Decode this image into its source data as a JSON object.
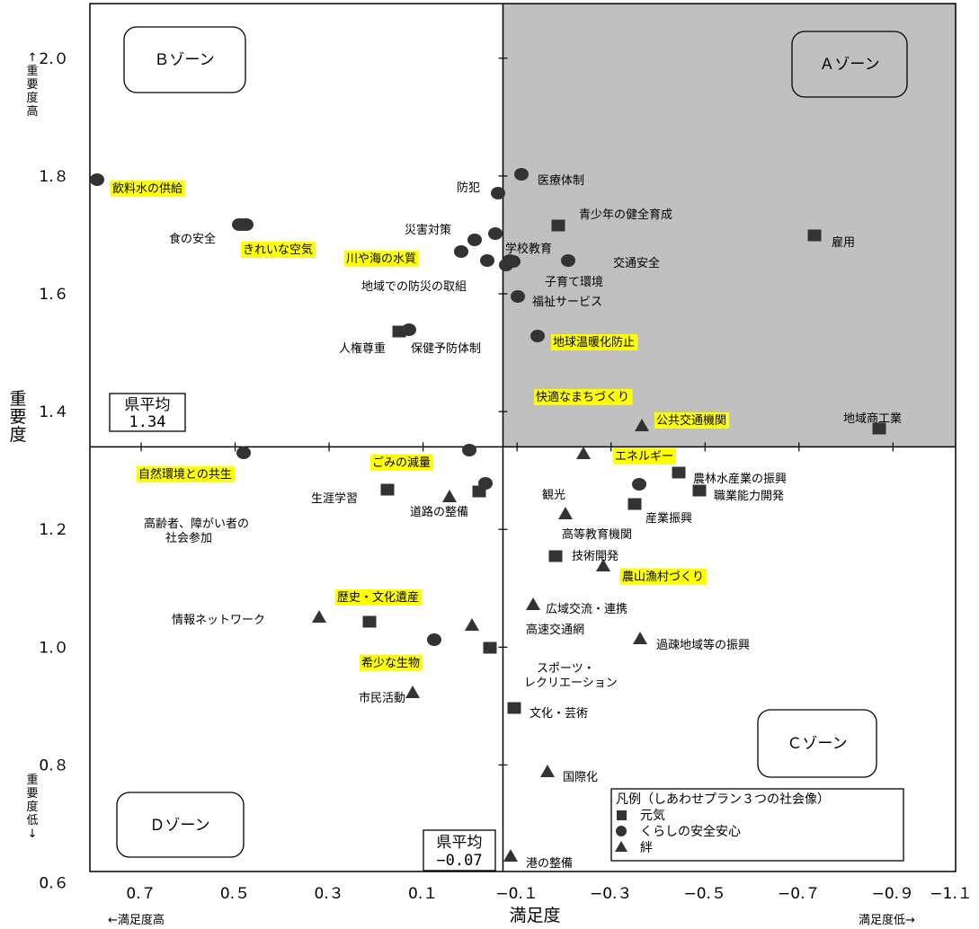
{
  "chart_data": {
    "type": "scatter",
    "xlabel": "満足度",
    "ylabel": "重要度",
    "x_low_label": "←満足度高",
    "x_high_label": "満足度低→",
    "y_high_label": "↑重要度高",
    "y_low_label": "重要度低↓",
    "xlim": [
      0.8,
      -1.1
    ],
    "ylim": [
      0.6,
      2.1
    ],
    "x_ticks": [
      0.7,
      0.5,
      0.3,
      0.1,
      -0.1,
      -0.3,
      -0.5,
      -0.7,
      -0.9,
      -1.1
    ],
    "x_tick_labels": [
      "0.７",
      "0.５",
      "0.３",
      "0.１",
      "−0.１",
      "−0.３",
      "−0.５",
      "−0.７",
      "−0.９",
      "−1.１"
    ],
    "y_ticks": [
      0.6,
      0.8,
      1.0,
      1.2,
      1.4,
      1.6,
      1.8,
      2.0
    ],
    "y_tick_labels": [
      "0.６",
      "0.８",
      "1.０",
      "1.２",
      "1.４",
      "1.６",
      "1.８",
      "2.０"
    ],
    "avg_x": -0.07,
    "avg_y": 1.34,
    "avg_x_box": [
      "県平均",
      "−0.07"
    ],
    "avg_y_box": [
      "県平均",
      "1.34"
    ],
    "zones": {
      "A": "Ａゾーン",
      "B": "Ｂゾーン",
      "C": "Ｃゾーン",
      "D": "Ｄゾーン"
    },
    "legend": {
      "title": "凡例（しあわせプラン３つの社会像）",
      "items": [
        {
          "marker": "square",
          "label": "元気"
        },
        {
          "marker": "circle",
          "label": "くらしの安全安心"
        },
        {
          "marker": "triangle",
          "label": "絆"
        }
      ]
    },
    "colors": {
      "zone_a_fill": "#c0c0c0",
      "highlight": "#ffff00",
      "marker": "#333333"
    },
    "points": [
      {
        "label": "飲料水の供給",
        "marker": "circle",
        "x": 0.78,
        "y": 1.8,
        "highlight": true
      },
      {
        "label": "医療体制",
        "marker": "circle",
        "x": -0.08,
        "y": 1.81,
        "highlight": false
      },
      {
        "label": "防犯",
        "marker": "circle",
        "x": -0.07,
        "y": 1.78,
        "highlight": false
      },
      {
        "label": "青少年の健全育成",
        "marker": "square",
        "x": -0.21,
        "y": 1.72,
        "highlight": false
      },
      {
        "label": "",
        "marker": "square",
        "x": -0.1,
        "y": 1.71,
        "highlight": false
      },
      {
        "label": "雇用",
        "marker": "square",
        "x": -0.8,
        "y": 1.7,
        "highlight": false
      },
      {
        "label": "食の安全",
        "marker": "circle",
        "x": 0.5,
        "y": 1.72,
        "highlight": false
      },
      {
        "label": "",
        "marker": "circle",
        "x": 0.49,
        "y": 1.72,
        "highlight": false
      },
      {
        "label": "きれいな空気",
        "marker": "circle",
        "x": 0.49,
        "y": 1.72,
        "highlight": true
      },
      {
        "label": "災害対策",
        "marker": "circle",
        "x": 0.04,
        "y": 1.7,
        "highlight": false
      },
      {
        "label": "川や海の水質",
        "marker": "circle",
        "x": 0.06,
        "y": 1.67,
        "highlight": true
      },
      {
        "label": "学校教育",
        "marker": "circle",
        "x": -0.03,
        "y": 1.66,
        "highlight": false
      },
      {
        "label": "",
        "marker": "circle",
        "x": -0.01,
        "y": 1.65,
        "highlight": false
      },
      {
        "label": "交通安全",
        "marker": "circle",
        "x": -0.2,
        "y": 1.66,
        "highlight": false
      },
      {
        "label": "地域での防災の取組",
        "marker": "circle",
        "x": -0.02,
        "y": 1.6,
        "highlight": false
      },
      {
        "label": "子育て環境",
        "marker": "circle",
        "x": -0.04,
        "y": 1.6,
        "highlight": false
      },
      {
        "label": "福祉サービス",
        "marker": "circle",
        "x": -0.04,
        "y": 1.6,
        "highlight": false
      },
      {
        "label": "人権尊重",
        "marker": "square",
        "x": 0.17,
        "y": 1.54,
        "highlight": false
      },
      {
        "label": "保健予防体制",
        "marker": "circle",
        "x": 0.15,
        "y": 1.54,
        "highlight": false
      },
      {
        "label": "地球温暖化防止",
        "marker": "circle",
        "x": -0.13,
        "y": 1.53,
        "highlight": true
      },
      {
        "label": "快適なまちづくり",
        "marker": "triangle",
        "x": -0.42,
        "y": 1.37,
        "highlight": true
      },
      {
        "label": "公共交通機関",
        "marker": "triangle",
        "x": -0.42,
        "y": 1.37,
        "highlight": true
      },
      {
        "label": "地域商工業",
        "marker": "square",
        "x": -0.94,
        "y": 1.37,
        "highlight": false
      },
      {
        "label": "自然環境との共生",
        "marker": "circle",
        "x": 0.48,
        "y": 1.33,
        "highlight": true
      },
      {
        "label": "ごみの減量",
        "marker": "circle",
        "x": 0.02,
        "y": 1.33,
        "highlight": true
      },
      {
        "label": "エネルギー",
        "marker": "triangle",
        "x": -0.26,
        "y": 1.32,
        "highlight": true
      },
      {
        "label": "農林水産業の振興",
        "marker": "square",
        "x": -0.51,
        "y": 1.29,
        "highlight": false
      },
      {
        "label": "",
        "marker": "circle",
        "x": -0.42,
        "y": 1.27,
        "highlight": false
      },
      {
        "label": "生涯学習",
        "marker": "square",
        "x": 0.19,
        "y": 1.26,
        "highlight": false
      },
      {
        "label": "",
        "marker": "square",
        "x": 0.02,
        "y": 1.26,
        "highlight": false
      },
      {
        "label": "",
        "marker": "circle",
        "x": 0.01,
        "y": 1.27,
        "highlight": false
      },
      {
        "label": "職業能力開発",
        "marker": "square",
        "x": -0.54,
        "y": 1.26,
        "highlight": false
      },
      {
        "label": "道路の整備",
        "marker": "triangle",
        "x": 0.09,
        "y": 1.25,
        "highlight": false
      },
      {
        "label": "観光",
        "marker": "triangle",
        "x": -0.16,
        "y": 1.22,
        "highlight": false
      },
      {
        "label": "産業振興",
        "marker": "square",
        "x": -0.38,
        "y": 1.24,
        "highlight": false
      },
      {
        "label": "高齢者、障がい者の社会参加",
        "marker": "circle",
        "x": 0.48,
        "y": 1.33,
        "highlight": false
      },
      {
        "label": "高等教育機関",
        "marker": "triangle",
        "x": -0.16,
        "y": 1.22,
        "highlight": false
      },
      {
        "label": "技術開発",
        "marker": "square",
        "x": -0.18,
        "y": 1.15,
        "highlight": false
      },
      {
        "label": "農山漁村づくり",
        "marker": "triangle",
        "x": -0.28,
        "y": 1.13,
        "highlight": true
      },
      {
        "label": "歴史・文化遺産",
        "marker": "square",
        "x": 0.21,
        "y": 1.04,
        "highlight": true
      },
      {
        "label": "広域交流・連携",
        "marker": "triangle",
        "x": -0.12,
        "y": 1.06,
        "highlight": false
      },
      {
        "label": "情報ネットワーク",
        "marker": "triangle",
        "x": 0.29,
        "y": 1.04,
        "highlight": false
      },
      {
        "label": "",
        "marker": "triangle",
        "x": 0.03,
        "y": 1.03,
        "highlight": false
      },
      {
        "label": "高速交通網",
        "marker": "triangle",
        "x": 0.03,
        "y": 1.03,
        "highlight": false
      },
      {
        "label": "過疎地域等の振興",
        "marker": "triangle",
        "x": -0.41,
        "y": 1.0,
        "highlight": false
      },
      {
        "label": "希少な生物",
        "marker": "circle",
        "x": 0.08,
        "y": 1.0,
        "highlight": true
      },
      {
        "label": "スポーツ・レクリエーション",
        "marker": "square",
        "x": -0.01,
        "y": 0.99,
        "highlight": false
      },
      {
        "label": "市民活動",
        "marker": "triangle",
        "x": 0.08,
        "y": 0.91,
        "highlight": false
      },
      {
        "label": "文化・芸術",
        "marker": "square",
        "x": -0.09,
        "y": 0.89,
        "highlight": false
      },
      {
        "label": "国際化",
        "marker": "triangle",
        "x": -0.15,
        "y": 0.78,
        "highlight": false
      },
      {
        "label": "港の整備",
        "marker": "triangle",
        "x": -0.09,
        "y": 0.63,
        "highlight": false
      }
    ]
  }
}
